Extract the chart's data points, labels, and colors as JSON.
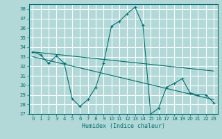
{
  "xlabel": "Humidex (Indice chaleur)",
  "ylabel": "",
  "background_color": "#b2d8d8",
  "grid_color": "#ffffff",
  "line_color": "#007070",
  "xlim": [
    -0.5,
    23.5
  ],
  "ylim": [
    27,
    38.5
  ],
  "yticks": [
    27,
    28,
    29,
    30,
    31,
    32,
    33,
    34,
    35,
    36,
    37,
    38
  ],
  "xticks": [
    0,
    1,
    2,
    3,
    4,
    5,
    6,
    7,
    8,
    9,
    10,
    11,
    12,
    13,
    14,
    15,
    16,
    17,
    18,
    19,
    20,
    21,
    22,
    23
  ],
  "series": [
    {
      "x": [
        0,
        1,
        2,
        3,
        4,
        5,
        6,
        7,
        8,
        9,
        10,
        11,
        12,
        13,
        14,
        15,
        16,
        17,
        18,
        19,
        20,
        21,
        22,
        23
      ],
      "y": [
        33.5,
        33.2,
        32.3,
        33.1,
        32.3,
        28.6,
        27.8,
        28.5,
        29.8,
        32.3,
        36.2,
        36.7,
        37.5,
        38.2,
        36.3,
        27.0,
        27.6,
        29.8,
        30.2,
        30.7,
        29.2,
        29.0,
        29.0,
        28.2
      ]
    },
    {
      "x": [
        0,
        23
      ],
      "y": [
        33.5,
        31.5
      ]
    },
    {
      "x": [
        0,
        23
      ],
      "y": [
        33.0,
        28.5
      ]
    }
  ]
}
